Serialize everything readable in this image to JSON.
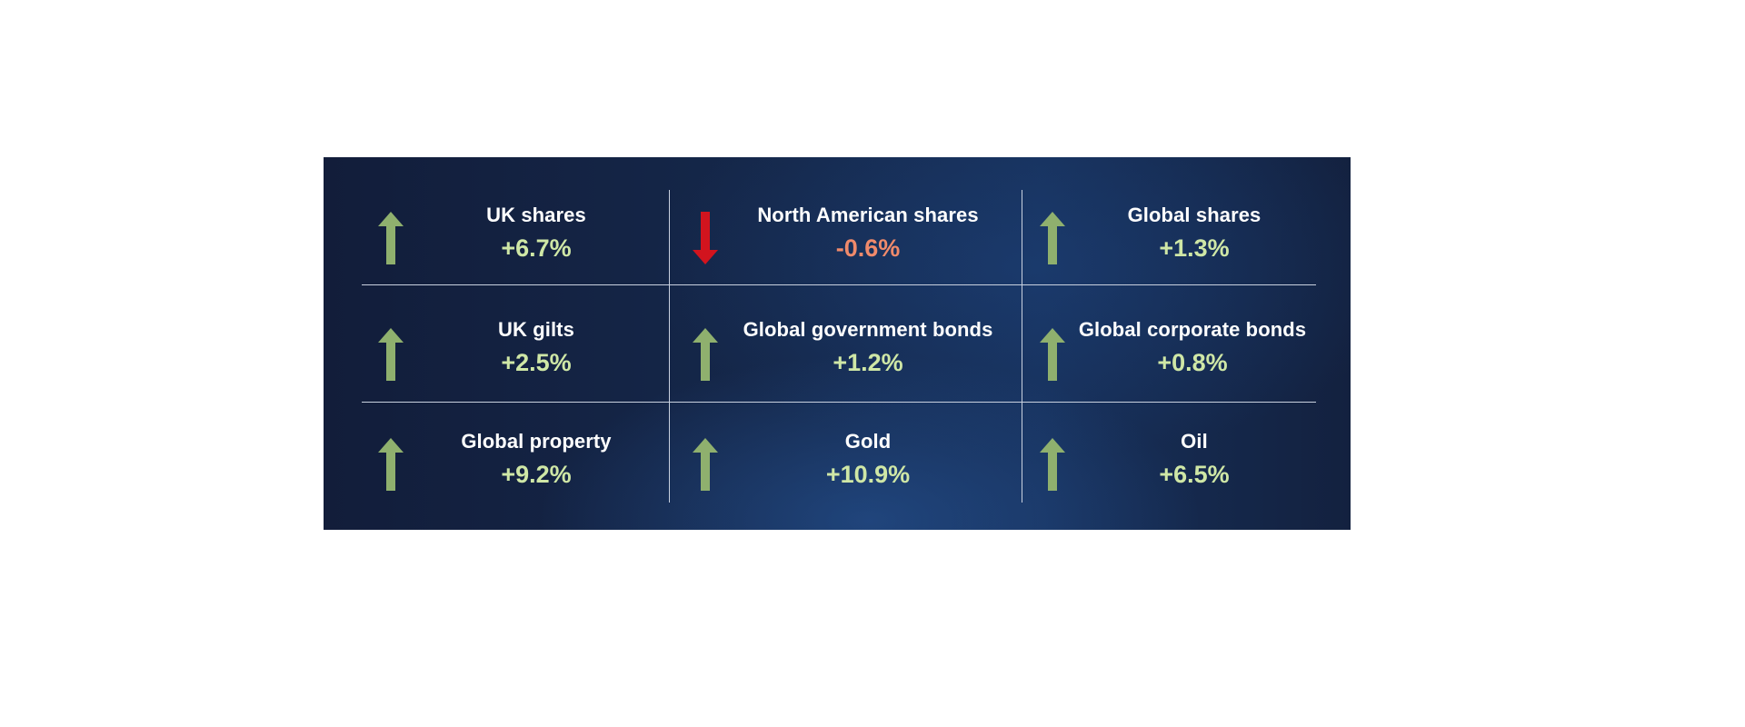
{
  "colors": {
    "up_arrow": "#8fb06e",
    "down_arrow": "#d2141e",
    "up_value": "#cfe7a6",
    "down_value": "#f08a6b"
  },
  "cells": [
    {
      "label": "UK shares",
      "value": "+6.7%",
      "direction": "up",
      "icon": "arrow-up-icon"
    },
    {
      "label": "North American shares",
      "value": "-0.6%",
      "direction": "down",
      "icon": "arrow-down-icon"
    },
    {
      "label": "Global shares",
      "value": "+1.3%",
      "direction": "up",
      "icon": "arrow-up-icon"
    },
    {
      "label": "UK gilts",
      "value": "+2.5%",
      "direction": "up",
      "icon": "arrow-up-icon"
    },
    {
      "label": "Global government bonds",
      "value": "+1.2%",
      "direction": "up",
      "icon": "arrow-up-icon"
    },
    {
      "label": "Global corporate bonds",
      "value": "+0.8%",
      "direction": "up",
      "icon": "arrow-up-icon"
    },
    {
      "label": "Global property",
      "value": "+9.2%",
      "direction": "up",
      "icon": "arrow-up-icon"
    },
    {
      "label": "Gold",
      "value": "+10.9%",
      "direction": "up",
      "icon": "arrow-up-icon"
    },
    {
      "label": "Oil",
      "value": "+6.5%",
      "direction": "up",
      "icon": "arrow-up-icon"
    }
  ]
}
